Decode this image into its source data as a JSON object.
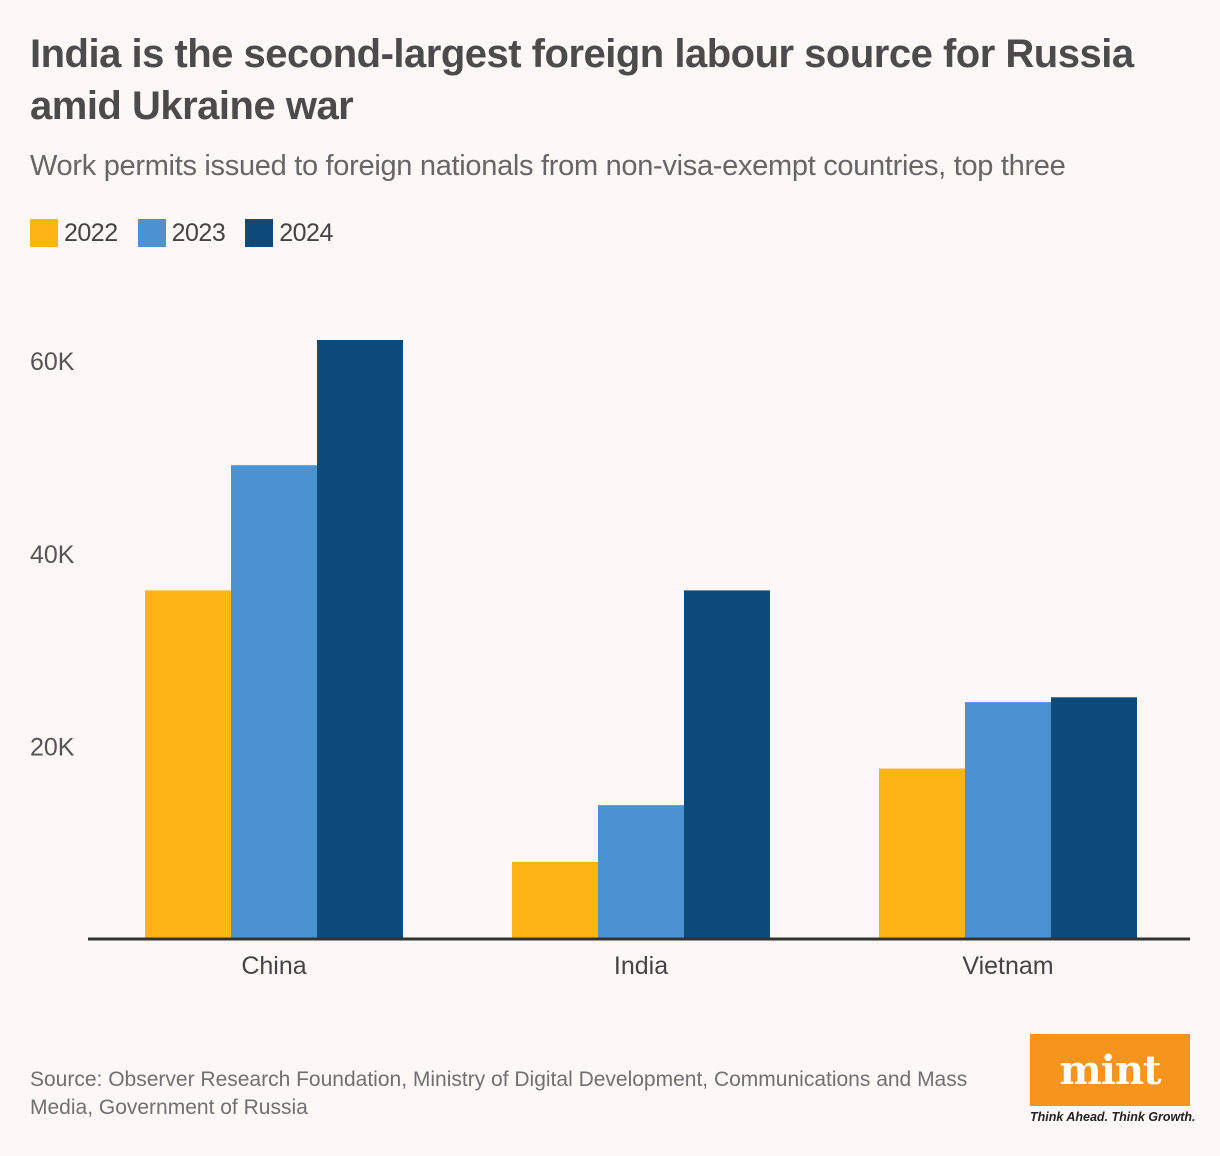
{
  "title": "India is the second-largest foreign labour source for Russia amid Ukraine war",
  "subtitle": "Work permits issued to foreign nationals from non-visa-exempt countries, top three",
  "legend": [
    {
      "label": "2022",
      "color": "#fdb515"
    },
    {
      "label": "2023",
      "color": "#4b93d0"
    },
    {
      "label": "2024",
      "color": "#0c4a7a"
    }
  ],
  "chart_data": {
    "type": "bar",
    "categories": [
      "China",
      "India",
      "Vietnam"
    ],
    "series": [
      {
        "name": "2022",
        "color": "#fdb515",
        "values": [
          36200,
          8000,
          17700
        ]
      },
      {
        "name": "2023",
        "color": "#4b93d0",
        "values": [
          49200,
          13900,
          24600
        ]
      },
      {
        "name": "2024",
        "color": "#0c4a7a",
        "values": [
          62200,
          36200,
          25100
        ]
      }
    ],
    "ylim": [
      0,
      62200
    ],
    "yticks": [
      20000,
      40000,
      60000
    ],
    "ytick_labels": [
      "20K",
      "40K",
      "60K"
    ],
    "grid": false,
    "legend_position": "top-left"
  },
  "source": "Source: Observer Research Foundation, Ministry of Digital Development, Communications and Mass Media, Government of Russia",
  "logo": {
    "text": "mint",
    "tagline": "Think Ahead. Think Growth.",
    "color": "#f7941d"
  }
}
